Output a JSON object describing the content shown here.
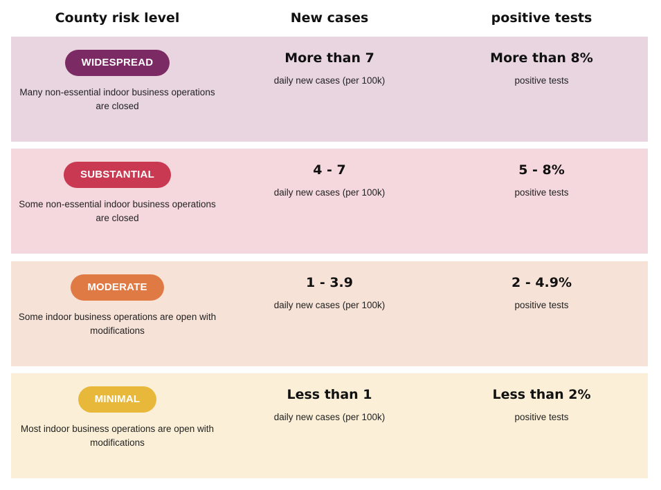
{
  "headers": {
    "risk": "County risk level",
    "cases": "New cases",
    "tests": "positive tests"
  },
  "tiers": [
    {
      "label": "WIDESPREAD",
      "description": "Many non-essential indoor business operations are closed",
      "cases_value": "More than 7",
      "cases_unit": "daily new cases (per 100k)",
      "tests_value": "More than 8%",
      "tests_unit": "positive tests",
      "row_color": "#e8d5e0",
      "pill_color": "#7b2a63"
    },
    {
      "label": "SUBSTANTIAL",
      "description": "Some non-essential indoor business operations are closed",
      "cases_value": "4 - 7",
      "cases_unit": "daily new cases (per 100k)",
      "tests_value": "5 - 8%",
      "tests_unit": "positive tests",
      "row_color": "#f5d8dd",
      "pill_color": "#c93a52"
    },
    {
      "label": "MODERATE",
      "description": "Some indoor business operations are open with modifications",
      "cases_value": "1 - 3.9",
      "cases_unit": "daily new cases (per 100k)",
      "tests_value": "2 - 4.9%",
      "tests_unit": "positive tests",
      "row_color": "#f7e2d7",
      "pill_color": "#e07a44"
    },
    {
      "label": "MINIMAL",
      "description": "Most indoor business operations are open with modifications",
      "cases_value": "Less than 1",
      "cases_unit": "daily new cases (per 100k)",
      "tests_value": "Less than 2%",
      "tests_unit": "positive tests",
      "row_color": "#fbf0d7",
      "pill_color": "#e8b83a"
    }
  ]
}
